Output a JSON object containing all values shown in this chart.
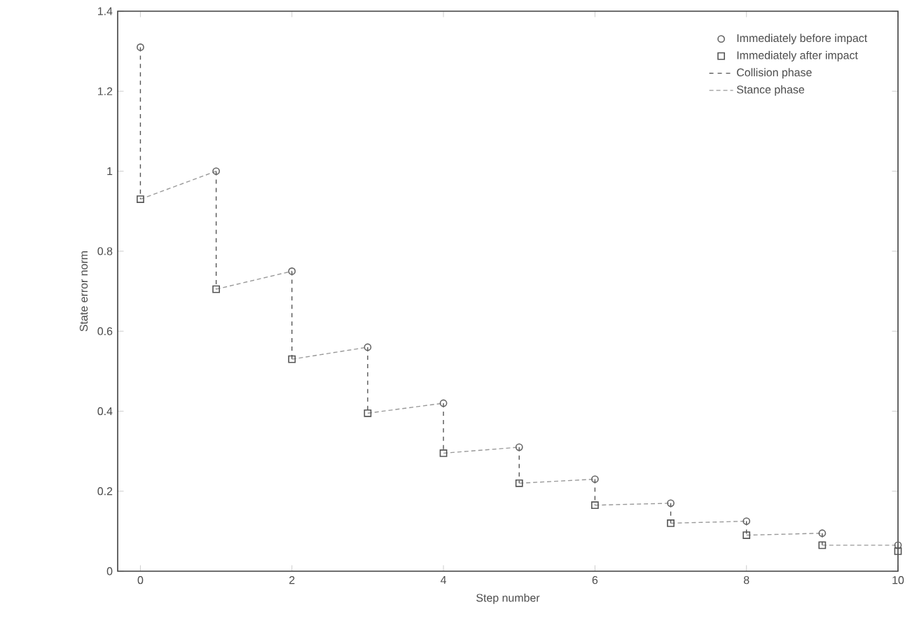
{
  "chart_data": {
    "type": "line",
    "xlabel": "Step number",
    "ylabel": "State error norm",
    "xlim": [
      -0.3,
      10
    ],
    "ylim": [
      0,
      1.4
    ],
    "xticks": [
      0,
      2,
      4,
      6,
      8,
      10
    ],
    "yticks": [
      0,
      0.2,
      0.4,
      0.6,
      0.8,
      1,
      1.2,
      1.4
    ],
    "grid": false,
    "legend": "top right",
    "series": [
      {
        "name": "Immediately before impact",
        "type": "scatter",
        "marker": "circle",
        "color": "#666666",
        "x": [
          0,
          1,
          2,
          3,
          4,
          5,
          6,
          7,
          8,
          9,
          10
        ],
        "values": [
          1.31,
          1.0,
          0.75,
          0.56,
          0.42,
          0.31,
          0.23,
          0.17,
          0.125,
          0.095,
          0.065
        ]
      },
      {
        "name": "Immediately after impact",
        "type": "scatter",
        "marker": "square",
        "color": "#555555",
        "x": [
          0,
          1,
          2,
          3,
          4,
          5,
          6,
          7,
          8,
          9,
          10
        ],
        "values": [
          0.93,
          0.705,
          0.53,
          0.395,
          0.295,
          0.22,
          0.165,
          0.12,
          0.09,
          0.065,
          0.05
        ]
      },
      {
        "name": "Collision phase",
        "line_style": "dashed",
        "color": "#555555",
        "x": [
          0,
          0,
          null,
          1,
          1,
          null,
          2,
          2,
          null,
          3,
          3,
          null,
          4,
          4,
          null,
          5,
          5,
          null,
          6,
          6,
          null,
          7,
          7,
          null,
          8,
          8,
          null,
          9,
          9,
          null,
          10,
          10
        ],
        "values": [
          1.31,
          0.93,
          null,
          1.0,
          0.705,
          null,
          0.75,
          0.53,
          null,
          0.56,
          0.395,
          null,
          0.42,
          0.295,
          null,
          0.31,
          0.22,
          null,
          0.23,
          0.165,
          null,
          0.17,
          0.12,
          null,
          0.125,
          0.09,
          null,
          0.095,
          0.065,
          null,
          0.065,
          0.05
        ]
      },
      {
        "name": "Stance phase",
        "line_style": "dotted",
        "color": "#999999",
        "x": [
          0,
          1,
          null,
          1,
          2,
          null,
          2,
          3,
          null,
          3,
          4,
          null,
          4,
          5,
          null,
          5,
          6,
          null,
          6,
          7,
          null,
          7,
          8,
          null,
          8,
          9,
          null,
          9,
          10
        ],
        "values": [
          0.93,
          1.0,
          null,
          0.705,
          0.75,
          null,
          0.53,
          0.56,
          null,
          0.395,
          0.42,
          null,
          0.295,
          0.31,
          null,
          0.22,
          0.23,
          null,
          0.165,
          0.17,
          null,
          0.12,
          0.125,
          null,
          0.09,
          0.095,
          null,
          0.065,
          0.065
        ]
      }
    ]
  }
}
